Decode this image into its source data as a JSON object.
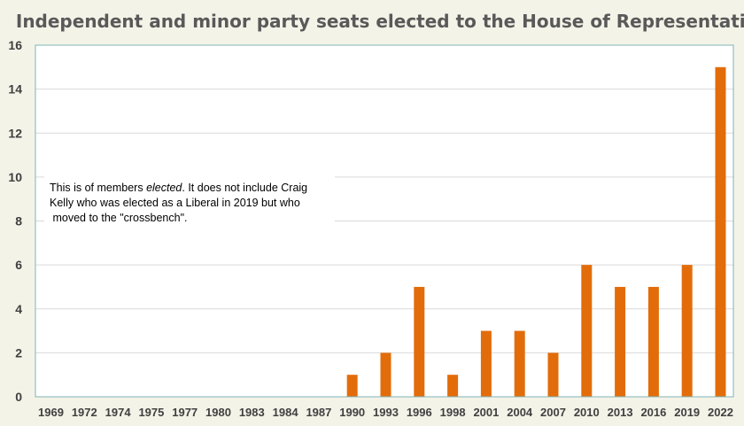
{
  "chart_data": {
    "type": "bar",
    "title": "Independent and minor party seats elected to  the House of Representatives",
    "xlabel": "",
    "ylabel": "",
    "categories": [
      "1969",
      "1972",
      "1974",
      "1975",
      "1977",
      "1980",
      "1983",
      "1984",
      "1987",
      "1990",
      "1993",
      "1996",
      "1998",
      "2001",
      "2004",
      "2007",
      "2010",
      "2013",
      "2016",
      "2019",
      "2022"
    ],
    "values": [
      0,
      0,
      0,
      0,
      0,
      0,
      0,
      0,
      0,
      1,
      2,
      5,
      1,
      3,
      3,
      2,
      6,
      5,
      5,
      6,
      15
    ],
    "ylim": [
      0,
      16
    ],
    "yticks": [
      "0",
      "2",
      "4",
      "6",
      "8",
      "10",
      "12",
      "14",
      "16"
    ],
    "grid": true,
    "bar_color": "#e36c0a",
    "grid_color": "#d9d9d9",
    "axis_color": "#7fb5b5",
    "background_color": "#f3f3e8"
  },
  "annotation": {
    "part1": "This is of members ",
    "part1_em": "elected",
    "part1_rest": ". It does not include Craig",
    "line2": "Kelly who was elected as a Liberal in 2019 but who",
    "line3": " moved to the \"crossbench\"."
  }
}
